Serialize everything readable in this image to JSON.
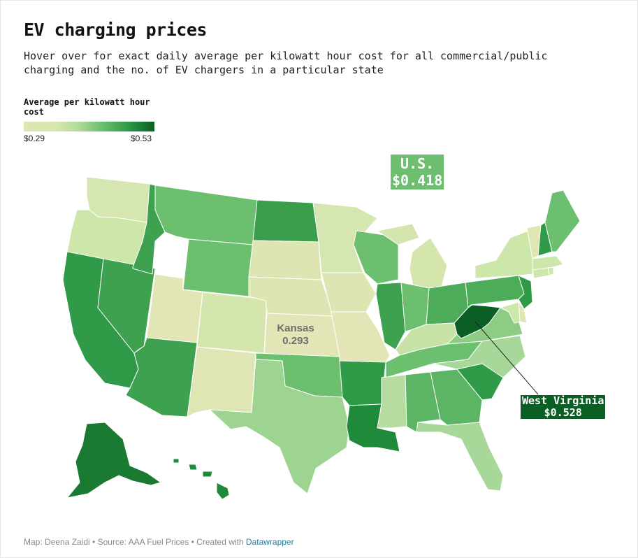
{
  "header": {
    "title": "EV charging prices",
    "subtitle": "Hover over for exact daily average per kilowatt hour cost for all commercial/public charging and the no. of EV chargers in a particular state"
  },
  "legend": {
    "title": "Average per kilowatt hour cost",
    "min_label": "$0.29",
    "max_label": "$0.53",
    "min_value": 0.29,
    "max_value": 0.53,
    "colors": [
      "#dfe6b3",
      "#b6dca0",
      "#6bbf6f",
      "#2c9a45",
      "#0b5e24"
    ]
  },
  "annotations": {
    "us": {
      "line1": "U.S.",
      "line2": "$0.418",
      "color": "#6cbf6f"
    },
    "kansas": {
      "line1": "Kansas",
      "line2": "0.293"
    },
    "west_virginia": {
      "line1": "West Virginia",
      "line2": "$0.528",
      "color": "#0b5e24"
    }
  },
  "map_data": {
    "type": "choropleth",
    "region": "United States",
    "state_colors": {
      "WA": "#d6e6b0",
      "OR": "#cde6aa",
      "CA": "#2f9a47",
      "NV": "#3da150",
      "ID": "#3da150",
      "MT": "#6bbf6f",
      "WY": "#6bbf6f",
      "UT": "#e2e6b5",
      "AZ": "#3da150",
      "CO": "#d4e6ad",
      "NM": "#dfe6b3",
      "ND": "#3a9e4d",
      "SD": "#dde6b3",
      "NE": "#dde6b3",
      "KS": "#e3e5b6",
      "OK": "#6bbf6f",
      "TX": "#9ed491",
      "MN": "#d6e6b0",
      "IA": "#dde6b3",
      "MO": "#e3e5b6",
      "AR": "#2f9a47",
      "LA": "#1f8a3a",
      "WI": "#6bbf6f",
      "IL": "#3da150",
      "MI": "#d4e6ad",
      "IN": "#6bbf6f",
      "OH": "#4dac5a",
      "KY": "#c6e2a6",
      "TN": "#6bbf6f",
      "MS": "#b6dca0",
      "AL": "#5cb564",
      "GA": "#5cb564",
      "FL": "#a8d899",
      "SC": "#2f9a47",
      "NC": "#a8d899",
      "VA": "#8ccc85",
      "WV": "#0b5e24",
      "PA": "#4dac5a",
      "NY": "#cde6aa",
      "ME": "#6bbf6f",
      "NH": "#2f9a47",
      "VT": "#dfe6b3",
      "MA": "#cde6aa",
      "CT": "#cde6aa",
      "RI": "#cde6aa",
      "NJ": "#2f9a47",
      "DE": "#dfe6b3",
      "MD": "#cde6aa",
      "AK": "#1a7a32",
      "HI": "#1f8a3a"
    }
  },
  "footer": {
    "credit": "Map: Deena Zaidi • Source: AAA Fuel Prices • Created with ",
    "link": "Datawrapper"
  }
}
